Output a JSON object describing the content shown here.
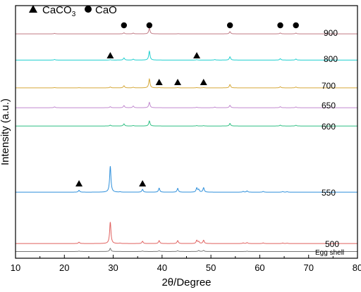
{
  "chart_data": {
    "type": "line",
    "xlabel": "2θ/Degree",
    "ylabel": "Intensity (a.u.)",
    "xlim": [
      10,
      80
    ],
    "xticks": [
      10,
      20,
      30,
      40,
      50,
      60,
      70,
      80
    ],
    "legend": {
      "placement": "top-left",
      "entries": [
        {
          "marker": "triangle",
          "name": "CaCO",
          "subscript": "3"
        },
        {
          "marker": "circle",
          "name": "CaO"
        }
      ]
    },
    "series": [
      {
        "name": "900",
        "color": "#c07a84",
        "baseline": 0.97,
        "scale": 0.3,
        "peaks": [
          [
            18.0,
            0.8
          ],
          [
            32.2,
            1.6
          ],
          [
            34.1,
            1.2
          ],
          [
            37.4,
            9.0
          ],
          [
            43.3,
            0.3
          ],
          [
            53.9,
            3.5
          ],
          [
            64.2,
            1.4
          ],
          [
            67.4,
            1.2
          ]
        ]
      },
      {
        "name": "800",
        "color": "#1fcfcf",
        "baseline": 0.7,
        "scale": 0.3,
        "peaks": [
          [
            18.0,
            0.9
          ],
          [
            29.4,
            0.6
          ],
          [
            32.2,
            3.4
          ],
          [
            34.1,
            1.4
          ],
          [
            37.4,
            14.0
          ],
          [
            47.1,
            0.6
          ],
          [
            50.8,
            0.8
          ],
          [
            53.9,
            5.2
          ],
          [
            64.2,
            2.2
          ],
          [
            67.4,
            1.6
          ]
        ]
      },
      {
        "name": "700",
        "color": "#d6a93a",
        "baseline": 1.25,
        "scale": 0.3,
        "peaks": [
          [
            18.0,
            0.5
          ],
          [
            23.0,
            0.3
          ],
          [
            29.4,
            1.4
          ],
          [
            32.2,
            3.4
          ],
          [
            34.1,
            1.0
          ],
          [
            37.4,
            14.0
          ],
          [
            39.4,
            0.5
          ],
          [
            43.2,
            0.6
          ],
          [
            47.1,
            0.5
          ],
          [
            48.5,
            0.5
          ],
          [
            53.9,
            5.2
          ],
          [
            64.2,
            1.8
          ],
          [
            67.4,
            1.4
          ]
        ]
      },
      {
        "name": "650",
        "color": "#c188cf",
        "baseline": 1.0,
        "scale": 0.3,
        "peaks": [
          [
            18.0,
            1.4
          ],
          [
            29.4,
            1.6
          ],
          [
            32.2,
            3.4
          ],
          [
            34.1,
            2.6
          ],
          [
            37.4,
            8.5
          ],
          [
            47.1,
            0.8
          ],
          [
            50.8,
            1.0
          ],
          [
            53.9,
            3.8
          ],
          [
            64.2,
            1.6
          ],
          [
            67.4,
            1.2
          ]
        ]
      },
      {
        "name": "600",
        "color": "#2fbf83",
        "baseline": 1.0,
        "scale": 0.3,
        "peaks": [
          [
            29.4,
            1.3
          ],
          [
            32.2,
            3.4
          ],
          [
            34.1,
            0.8
          ],
          [
            37.4,
            8.0
          ],
          [
            47.1,
            0.6
          ],
          [
            48.5,
            0.5
          ],
          [
            53.9,
            4.0
          ],
          [
            64.2,
            1.3
          ],
          [
            67.4,
            1.1
          ]
        ]
      },
      {
        "name": "550",
        "color": "#2d8fdb",
        "baseline": 0.95,
        "scale": 0.3,
        "peaks": [
          [
            23.0,
            3.0
          ],
          [
            29.4,
            41.0
          ],
          [
            31.4,
            0.6
          ],
          [
            36.0,
            4.5
          ],
          [
            39.4,
            6.4
          ],
          [
            43.2,
            6.0
          ],
          [
            47.1,
            6.5
          ],
          [
            47.5,
            4.0
          ],
          [
            48.5,
            7.0
          ],
          [
            56.6,
            1.2
          ],
          [
            57.4,
            2.0
          ],
          [
            60.7,
            1.2
          ],
          [
            64.7,
            1.0
          ],
          [
            65.6,
            0.8
          ]
        ]
      },
      {
        "name": "500",
        "color": "#e0605e",
        "baseline": 0.95,
        "scale": 0.3,
        "peaks": [
          [
            23.0,
            2.2
          ],
          [
            29.4,
            34.0
          ],
          [
            31.4,
            0.6
          ],
          [
            36.0,
            3.6
          ],
          [
            39.4,
            4.6
          ],
          [
            43.2,
            4.6
          ],
          [
            47.1,
            5.0
          ],
          [
            47.5,
            3.0
          ],
          [
            48.5,
            5.2
          ],
          [
            56.6,
            1.0
          ],
          [
            57.4,
            1.5
          ],
          [
            60.7,
            1.0
          ],
          [
            64.7,
            0.8
          ],
          [
            65.6,
            0.6
          ]
        ]
      },
      {
        "name": "Egg shell",
        "color": "#777777",
        "baseline": 0.6,
        "scale": 0.3,
        "peaks": [
          [
            23.0,
            0.6
          ],
          [
            29.4,
            5.0
          ],
          [
            36.0,
            0.8
          ],
          [
            39.4,
            1.2
          ],
          [
            43.2,
            1.2
          ],
          [
            47.5,
            1.6
          ],
          [
            48.5,
            1.8
          ],
          [
            57.4,
            0.5
          ]
        ]
      }
    ],
    "markers": [
      {
        "shape": "circle",
        "x": [
          32.2,
          37.4,
          53.9,
          64.2,
          67.4
        ],
        "series": "900"
      },
      {
        "shape": "triangle",
        "x": [
          29.4,
          47.1
        ],
        "series": "800"
      },
      {
        "shape": "triangle",
        "x": [
          39.4,
          43.2,
          48.5
        ],
        "series": "700"
      },
      {
        "shape": "triangle",
        "x": [
          23.0,
          36.0
        ],
        "series": "550"
      }
    ]
  }
}
